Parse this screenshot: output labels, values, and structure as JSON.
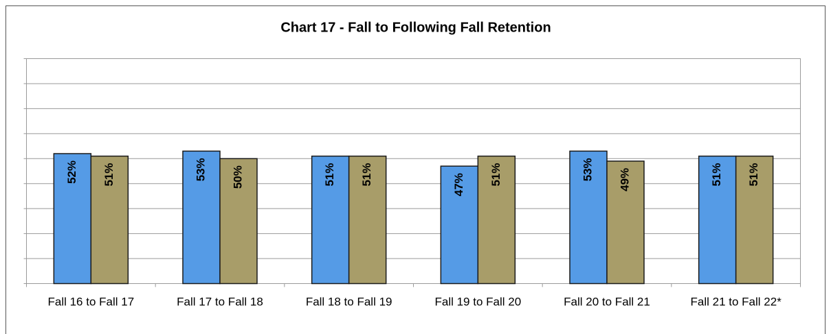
{
  "chart_data": {
    "type": "bar",
    "title": "Chart 17 - Fall to Following Fall Retention",
    "categories": [
      "Fall 16 to Fall 17",
      "Fall 17 to Fall 18",
      "Fall 18 to Fall 19",
      "Fall 19 to Fall 20",
      "Fall 20 to Fall 21",
      "Fall 21 to Fall 22*"
    ],
    "series": [
      {
        "color": "#559be6",
        "values": [
          52,
          53,
          51,
          47,
          53,
          51
        ],
        "value_labels": [
          "52%",
          "53%",
          "51%",
          "47%",
          "53%",
          "51%"
        ]
      },
      {
        "color": "#a89d69",
        "values": [
          51,
          50,
          51,
          51,
          49,
          51
        ],
        "value_labels": [
          "51%",
          "50%",
          "51%",
          "51%",
          "49%",
          "51%"
        ]
      }
    ],
    "ylim": [
      0,
      90
    ],
    "yticks": [
      0,
      10,
      20,
      30,
      40,
      50,
      60,
      70,
      80,
      90
    ],
    "grid": true
  }
}
